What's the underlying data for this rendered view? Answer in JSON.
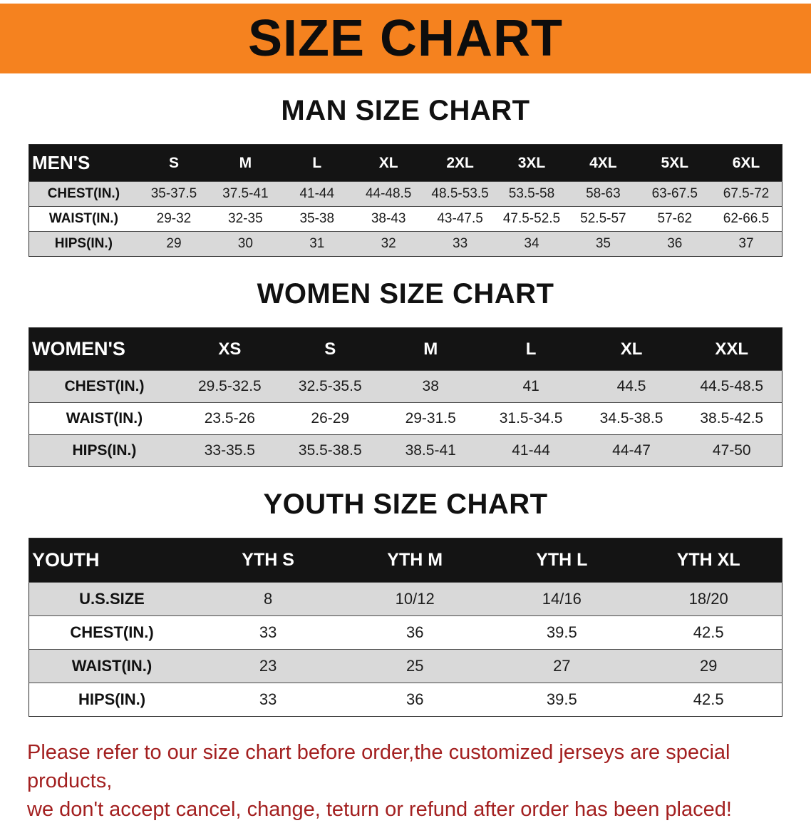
{
  "banner": {
    "title": "SIZE CHART"
  },
  "colors": {
    "banner_bg": "#F5821F",
    "table_header_bg": "#141414",
    "row_shade": "#d9d9d9",
    "footer_text": "#a32020"
  },
  "sections": {
    "men": {
      "heading": "MAN SIZE CHART",
      "table": {
        "header": [
          "MEN'S",
          "S",
          "M",
          "L",
          "XL",
          "2XL",
          "3XL",
          "4XL",
          "5XL",
          "6XL"
        ],
        "rows": [
          [
            "CHEST(IN.)",
            "35-37.5",
            "37.5-41",
            "41-44",
            "44-48.5",
            "48.5-53.5",
            "53.5-58",
            "58-63",
            "63-67.5",
            "67.5-72"
          ],
          [
            "WAIST(IN.)",
            "29-32",
            "32-35",
            "35-38",
            "38-43",
            "43-47.5",
            "47.5-52.5",
            "52.5-57",
            "57-62",
            "62-66.5"
          ],
          [
            "HIPS(IN.)",
            "29",
            "30",
            "31",
            "32",
            "33",
            "34",
            "35",
            "36",
            "37"
          ]
        ]
      }
    },
    "women": {
      "heading": "WOMEN SIZE CHART",
      "table": {
        "header": [
          "WOMEN'S",
          "XS",
          "S",
          "M",
          "L",
          "XL",
          "XXL"
        ],
        "rows": [
          [
            "CHEST(IN.)",
            "29.5-32.5",
            "32.5-35.5",
            "38",
            "41",
            "44.5",
            "44.5-48.5"
          ],
          [
            "WAIST(IN.)",
            "23.5-26",
            "26-29",
            "29-31.5",
            "31.5-34.5",
            "34.5-38.5",
            "38.5-42.5"
          ],
          [
            "HIPS(IN.)",
            "33-35.5",
            "35.5-38.5",
            "38.5-41",
            "41-44",
            "44-47",
            "47-50"
          ]
        ]
      }
    },
    "youth": {
      "heading": "YOUTH SIZE CHART",
      "table": {
        "header": [
          "YOUTH",
          "YTH S",
          "YTH M",
          "YTH L",
          "YTH XL"
        ],
        "rows": [
          [
            "U.S.SIZE",
            "8",
            "10/12",
            "14/16",
            "18/20"
          ],
          [
            "CHEST(IN.)",
            "33",
            "36",
            "39.5",
            "42.5"
          ],
          [
            "WAIST(IN.)",
            "23",
            "25",
            "27",
            "29"
          ],
          [
            "HIPS(IN.)",
            "33",
            "36",
            "39.5",
            "42.5"
          ]
        ]
      }
    }
  },
  "footer": {
    "line1": "Please refer to our size chart before order,the customized jerseys are special products,",
    "line2": "we don't accept cancel, change, teturn or refund after order has been placed!"
  }
}
